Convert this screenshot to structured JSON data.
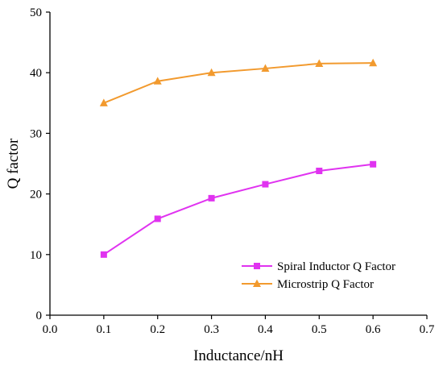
{
  "chart_data": {
    "type": "line",
    "title": "",
    "xlabel": "Inductance/nH",
    "ylabel": "Q factor",
    "xlim": [
      0.0,
      0.7
    ],
    "ylim": [
      0,
      50
    ],
    "xticks": [
      "0.0",
      "0.1",
      "0.2",
      "0.3",
      "0.4",
      "0.5",
      "0.6",
      "0.7"
    ],
    "yticks": [
      "0",
      "10",
      "20",
      "30",
      "40",
      "50"
    ],
    "x": [
      0.1,
      0.2,
      0.3,
      0.4,
      0.5,
      0.6
    ],
    "grid": false,
    "legend_position": "bottom-right",
    "series": [
      {
        "name": "Spiral Inductor Q Factor",
        "color": "#e033f0",
        "marker": "square",
        "values": [
          10.0,
          15.9,
          19.3,
          21.6,
          23.8,
          24.9
        ]
      },
      {
        "name": "Microstrip Q Factor",
        "color": "#f29a2e",
        "marker": "triangle",
        "values": [
          35.0,
          38.6,
          40.0,
          40.7,
          41.5,
          41.6
        ]
      }
    ]
  }
}
